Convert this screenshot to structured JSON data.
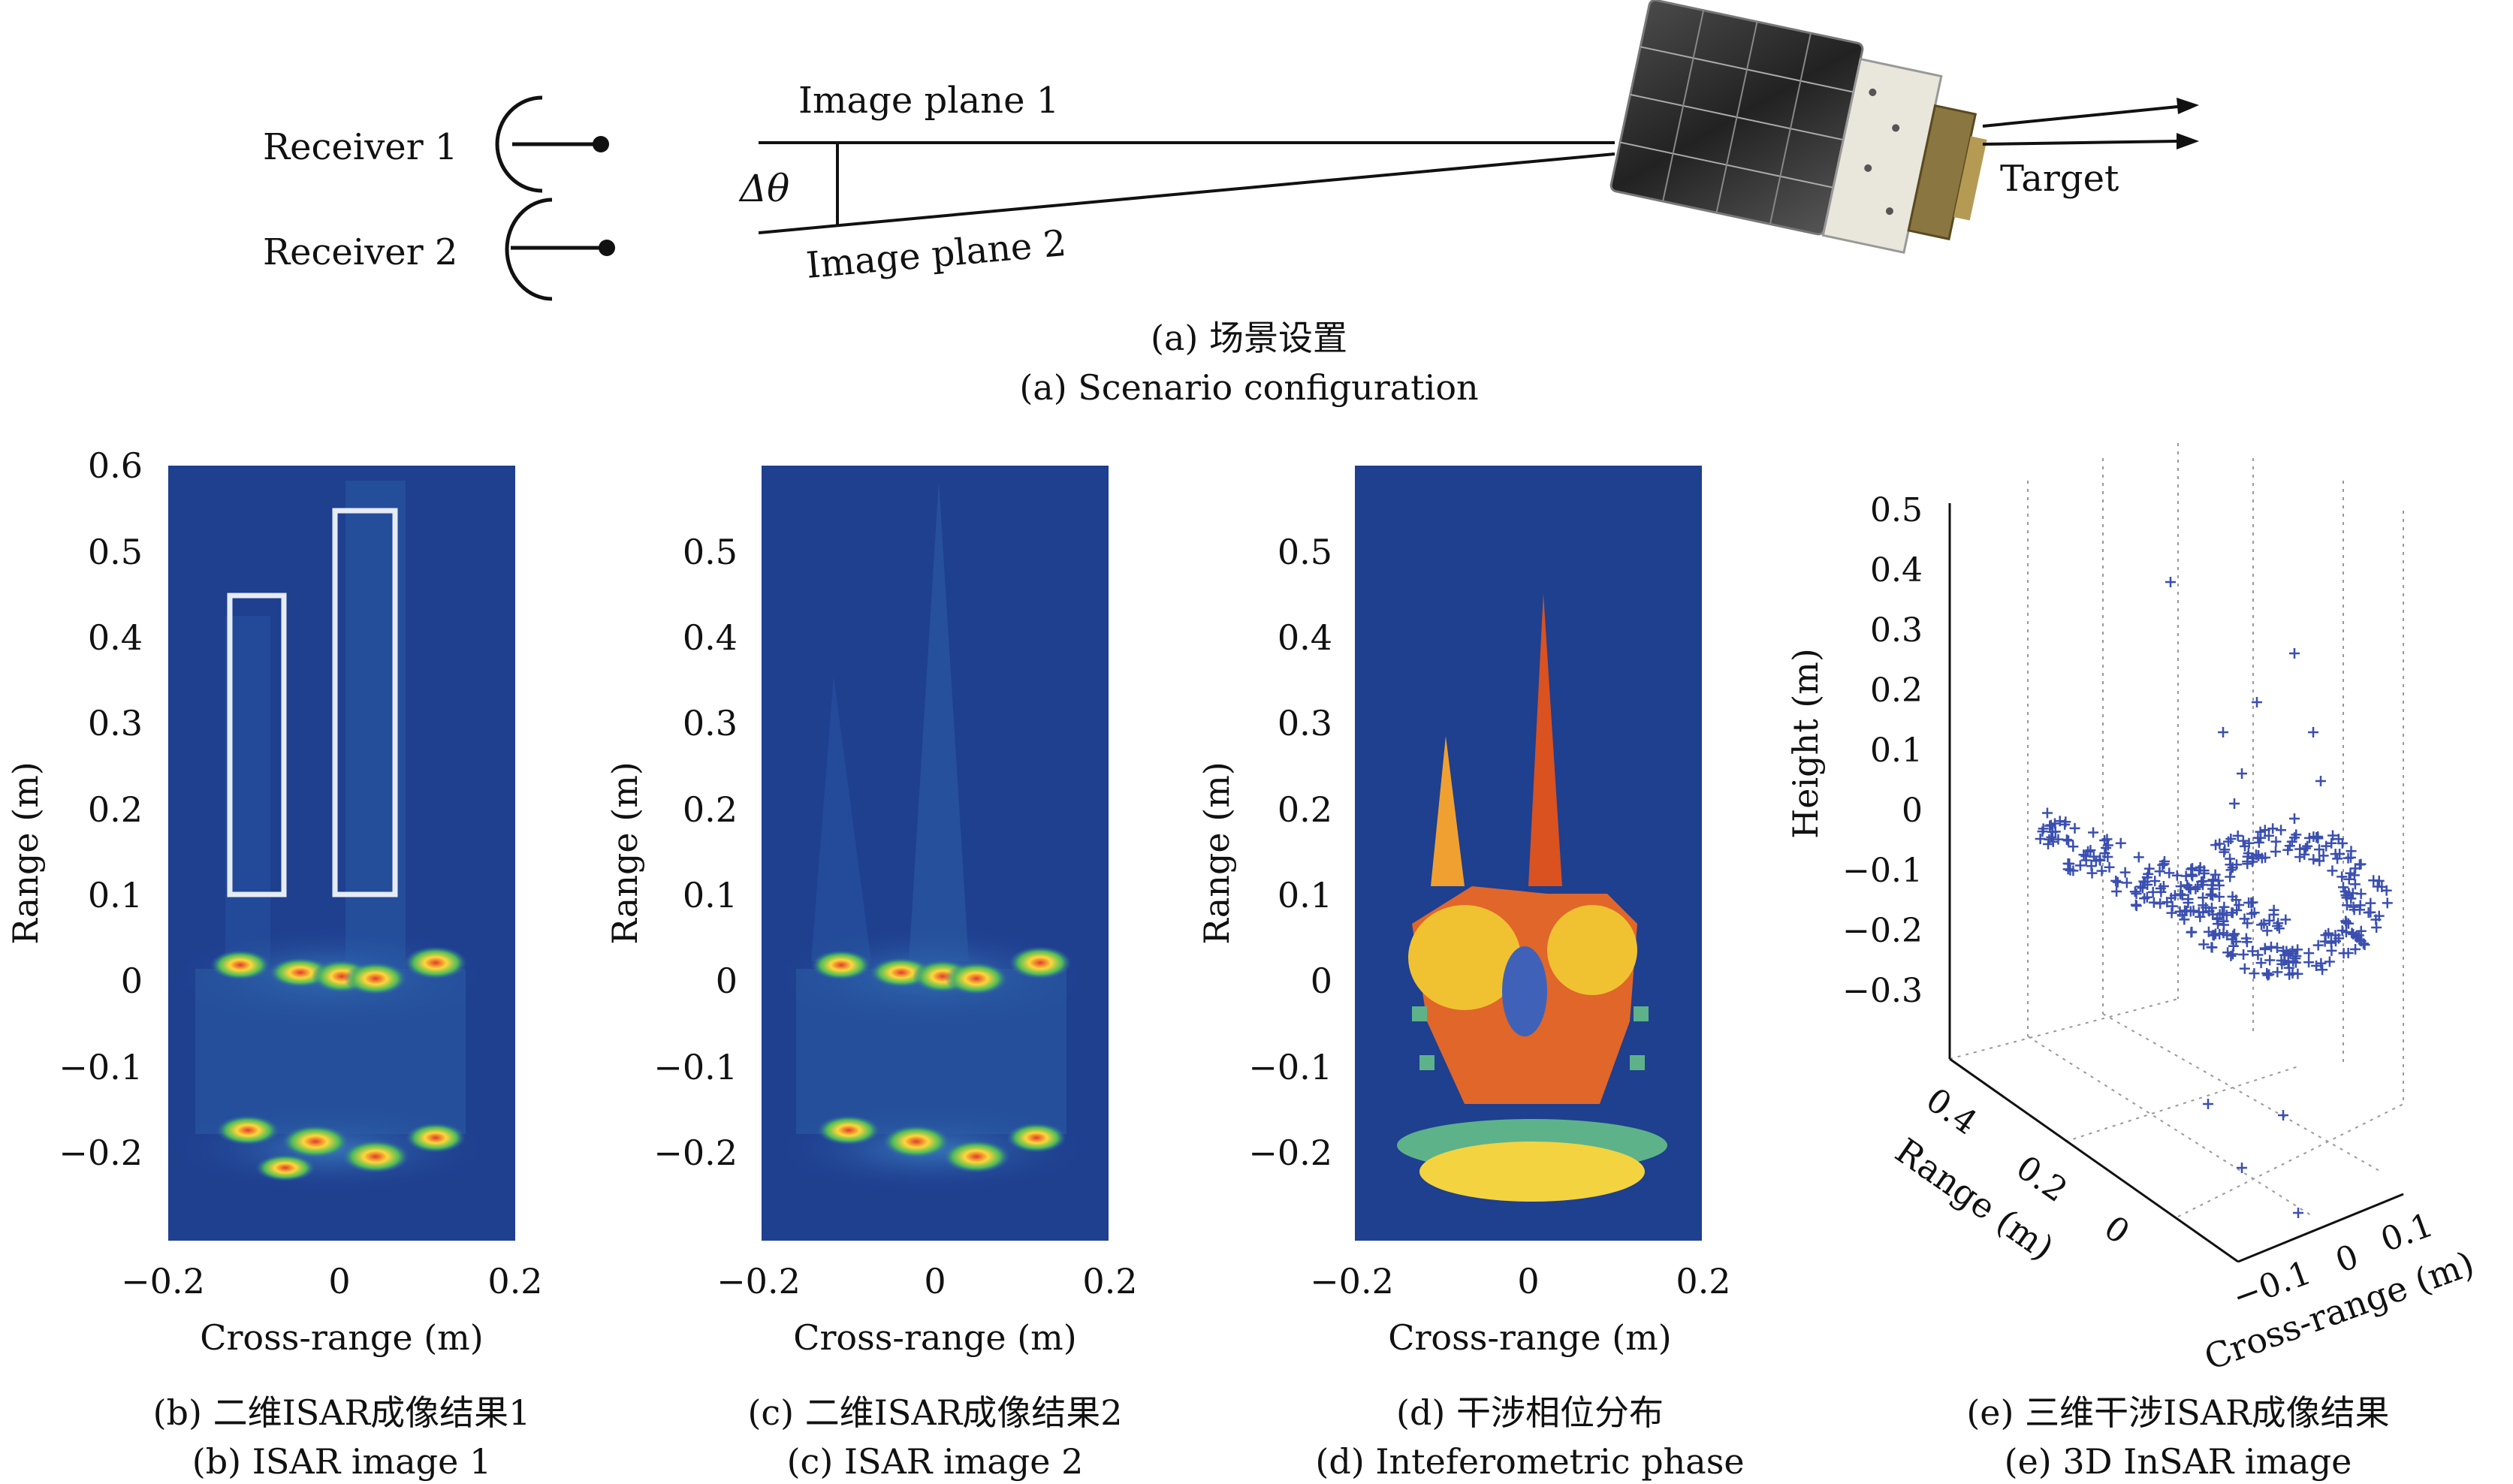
{
  "scenario": {
    "receiver1": "Receiver 1",
    "receiver2": "Receiver 2",
    "image_plane1": "Image plane 1",
    "image_plane2": "Image plane 2",
    "delta_theta": "Δθ",
    "target": "Target",
    "caption_cn": "(a) 场景设置",
    "caption_en": "(a) Scenario configuration"
  },
  "panel_b": {
    "caption_cn": "(b) 二维ISAR成像结果1",
    "caption_en": "(b) ISAR image 1"
  },
  "panel_c": {
    "caption_cn": "(c) 二维ISAR成像结果2",
    "caption_en": "(c) ISAR image 2"
  },
  "panel_d": {
    "caption_cn": "(d) 干涉相位分布",
    "caption_en": "(d) Inteferometric phase"
  },
  "panel_e": {
    "caption_cn": "(e) 三维干涉ISAR成像结果",
    "caption_en": "(e) 3D InSAR image"
  },
  "colors": {
    "image_bg": "#1f3f8f",
    "box": "#e6ecf5",
    "marker": "#3a4fb0"
  },
  "chart_data": [
    {
      "type": "heatmap",
      "id": "b",
      "xlabel": "Cross-range (m)",
      "ylabel": "Range (m)",
      "xticks": [
        "−0.2",
        "0",
        "0.2"
      ],
      "yticks": [
        "0.6",
        "0.5",
        "0.4",
        "0.3",
        "0.2",
        "0.1",
        "0",
        "−0.1",
        "−0.2"
      ],
      "xlim": [
        -0.2,
        0.2
      ],
      "ylim": [
        -0.3,
        0.6
      ]
    },
    {
      "type": "heatmap",
      "id": "c",
      "xlabel": "Cross-range (m)",
      "ylabel": "Range (m)",
      "xticks": [
        "−0.2",
        "0",
        "0.2"
      ],
      "yticks": [
        "0.5",
        "0.4",
        "0.3",
        "0.2",
        "0.1",
        "0",
        "−0.1",
        "−0.2"
      ],
      "xlim": [
        -0.2,
        0.2
      ],
      "ylim": [
        -0.3,
        0.6
      ]
    },
    {
      "type": "heatmap",
      "id": "d",
      "xlabel": "Cross-range (m)",
      "ylabel": "Range (m)",
      "xticks": [
        "−0.2",
        "0",
        "0.2"
      ],
      "yticks": [
        "0.5",
        "0.4",
        "0.3",
        "0.2",
        "0.1",
        "0",
        "−0.1",
        "−0.2"
      ],
      "xlim": [
        -0.2,
        0.2
      ],
      "ylim": [
        -0.3,
        0.6
      ]
    },
    {
      "type": "scatter",
      "id": "e",
      "zlabel": "Height (m)",
      "ylabel": "Range (m)",
      "xlabel": "Cross-range (m)",
      "zticks": [
        "0.5",
        "0.4",
        "0.3",
        "0.2",
        "0.1",
        "0",
        "−0.1",
        "−0.2",
        "−0.3"
      ],
      "yticks": [
        "0.4",
        "0.2",
        "0"
      ],
      "xticks": [
        "−0.1",
        "0",
        "0.1"
      ]
    }
  ]
}
